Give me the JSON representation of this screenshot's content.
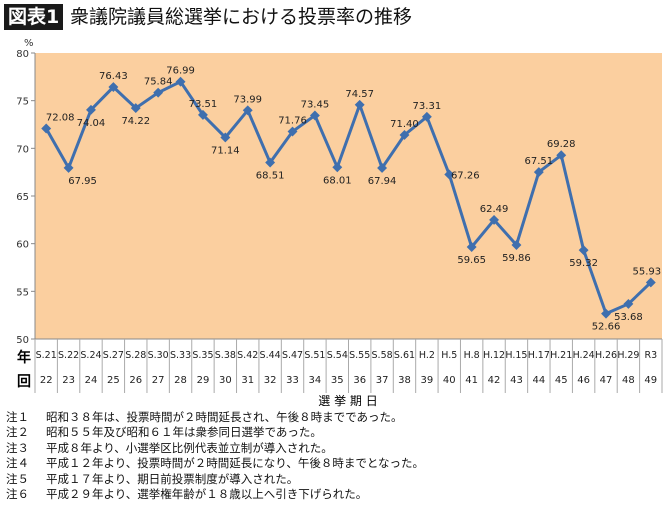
{
  "figure_label": "図表1",
  "title": "衆議院議員総選挙における投票率の推移",
  "chart_data": {
    "type": "line",
    "yunit": "%",
    "ylim": [
      50,
      80
    ],
    "yticks": [
      50,
      55,
      60,
      65,
      70,
      75,
      80
    ],
    "grid": false,
    "row_labels": {
      "year": "年",
      "round": "回"
    },
    "xlabel": "選 挙 期 日",
    "categories": [
      "S.21",
      "S.22",
      "S.24",
      "S.27",
      "S.28",
      "S.30",
      "S.33",
      "S.35",
      "S.38",
      "S.42",
      "S.44",
      "S.47",
      "S.51",
      "S.54",
      "S.55",
      "S.58",
      "S.61",
      "H.2",
      "H.5",
      "H.8",
      "H.12",
      "H.15",
      "H.17",
      "H.21",
      "H.24",
      "H.26",
      "H.29",
      "R3"
    ],
    "rounds": [
      "22",
      "23",
      "24",
      "25",
      "26",
      "27",
      "28",
      "29",
      "30",
      "31",
      "32",
      "33",
      "34",
      "35",
      "36",
      "37",
      "38",
      "39",
      "40",
      "41",
      "42",
      "43",
      "44",
      "45",
      "46",
      "47",
      "48",
      "49"
    ],
    "values": [
      72.08,
      67.95,
      74.04,
      76.43,
      74.22,
      75.84,
      76.99,
      73.51,
      71.14,
      73.99,
      68.51,
      71.76,
      73.45,
      68.01,
      74.57,
      67.94,
      71.4,
      73.31,
      67.26,
      59.65,
      62.49,
      59.86,
      67.51,
      69.28,
      59.32,
      52.66,
      53.68,
      55.93
    ],
    "value_labels": [
      "72.08",
      "67.95",
      "74.04",
      "76.43",
      "74.22",
      "75.84",
      "76.99",
      "73.51",
      "71.14",
      "73.99",
      "68.51",
      "71.76",
      "73.45",
      "68.01",
      "74.57",
      "67.94",
      "71.40",
      "73.31",
      "67.26",
      "59.65",
      "62.49",
      "59.86",
      "67.51",
      "69.28",
      "59.32",
      "52.66",
      "53.68",
      "55.93"
    ],
    "colors": {
      "line": "#3f6fae",
      "plot_bg": "#fbcf9f"
    }
  },
  "notes": [
    {
      "id": "注１",
      "text": "昭和３８年は、投票時間が２時間延長され、午後８時までであった。"
    },
    {
      "id": "注２",
      "text": "昭和５５年及び昭和６１年は衆参同日選挙であった。"
    },
    {
      "id": "注３",
      "text": "平成８年より、小選挙区比例代表並立制が導入された。"
    },
    {
      "id": "注４",
      "text": "平成１２年より、投票時間が２時間延長になり、午後８時までとなった。"
    },
    {
      "id": "注５",
      "text": "平成１７年より、期日前投票制度が導入された。"
    },
    {
      "id": "注６",
      "text": "平成２９年より、選挙権年齢が１８歳以上へ引き下げられた。"
    }
  ]
}
